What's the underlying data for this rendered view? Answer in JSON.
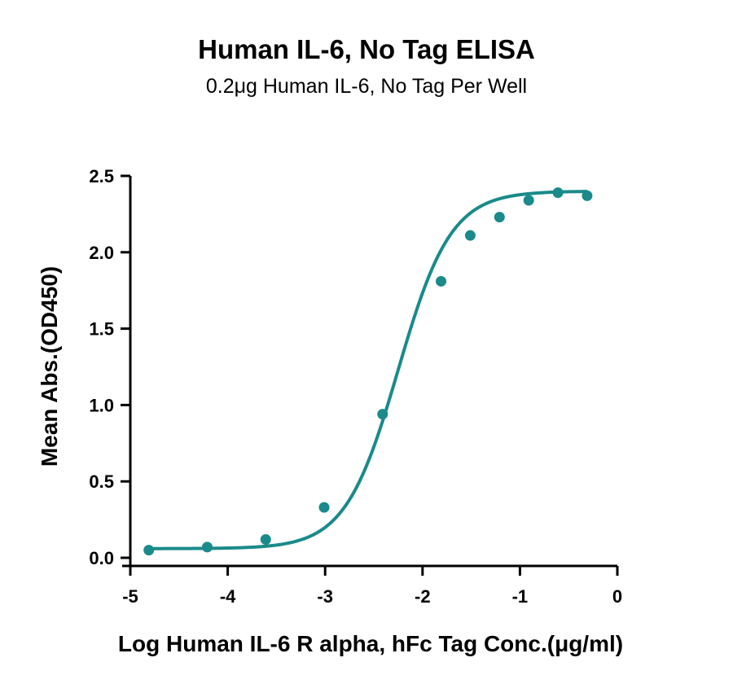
{
  "chart_data": {
    "type": "scatter",
    "title": "Human IL-6, No Tag ELISA",
    "subtitle": "0.2μg Human IL-6, No Tag Per Well",
    "xlabel": "Log Human IL-6 R alpha, hFc Tag Conc.(μg/ml)",
    "ylabel": "Mean Abs.(OD450)",
    "xlim": [
      -5,
      0
    ],
    "ylim": [
      0,
      2.5
    ],
    "xticks": [
      "-5",
      "-4",
      "-3",
      "-2",
      "-1",
      "0"
    ],
    "yticks": [
      "0.0",
      "0.5",
      "1.0",
      "1.5",
      "2.0",
      "2.5"
    ],
    "grid": false,
    "color": "#1a8a8a",
    "series": [
      {
        "x": [
          -4.81,
          -4.21,
          -3.61,
          -3.01,
          -2.41,
          -1.81,
          -1.51,
          -1.21,
          -0.91,
          -0.61,
          -0.31
        ],
        "y": [
          0.05,
          0.07,
          0.12,
          0.33,
          0.94,
          1.81,
          2.11,
          2.23,
          2.34,
          2.39,
          2.37
        ]
      }
    ],
    "fit_curve": {
      "bottom": 0.06,
      "top": 2.4,
      "logEC50": -2.25,
      "hill": 1.6
    }
  }
}
